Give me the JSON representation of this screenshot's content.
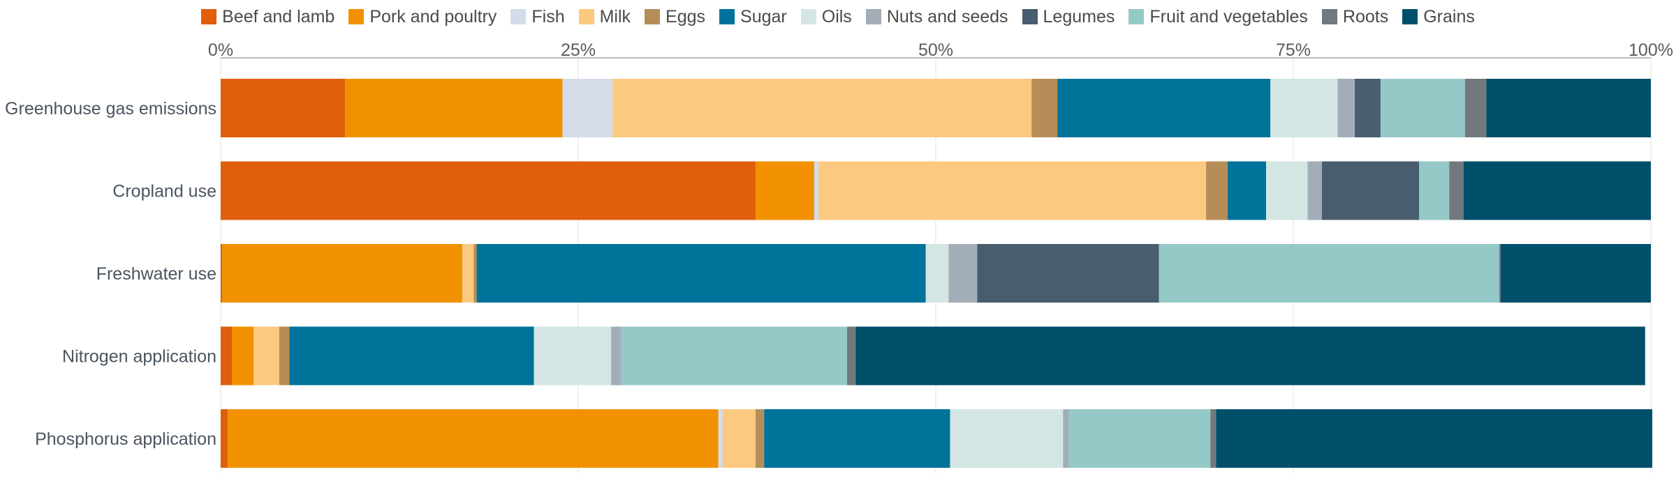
{
  "chart_data": {
    "type": "bar",
    "orientation": "horizontal",
    "stacked": true,
    "categories": [
      "Greenhouse gas emissions",
      "Cropland use",
      "Freshwater use",
      "Nitrogen application",
      "Phosphorus application"
    ],
    "xlim": [
      0,
      100
    ],
    "xticks": [
      "0%",
      "25%",
      "50%",
      "75%",
      "100%"
    ],
    "xaxis_position": "top",
    "grid": true,
    "legend_position": "top",
    "series": [
      {
        "name": "Beef and lamb",
        "color": "#e05e0c",
        "values": [
          8.7,
          37.4,
          0.1,
          0.8,
          0.5
        ]
      },
      {
        "name": "Pork and poultry",
        "color": "#f29100",
        "values": [
          15.2,
          4.1,
          16.8,
          1.5,
          34.3
        ]
      },
      {
        "name": "Fish",
        "color": "#d3dce8",
        "values": [
          3.5,
          0.3,
          0.0,
          0.0,
          0.3
        ]
      },
      {
        "name": "Milk",
        "color": "#fbc97f",
        "values": [
          29.3,
          27.1,
          0.8,
          1.8,
          2.3
        ]
      },
      {
        "name": "Eggs",
        "color": "#b68d56",
        "values": [
          1.8,
          1.5,
          0.2,
          0.7,
          0.6
        ]
      },
      {
        "name": "Sugar",
        "color": "#00739a",
        "values": [
          14.9,
          2.7,
          31.4,
          17.1,
          13.0
        ]
      },
      {
        "name": "Oils",
        "color": "#d3e6e4",
        "values": [
          4.7,
          2.9,
          1.6,
          5.4,
          7.9
        ]
      },
      {
        "name": "Nuts and seeds",
        "color": "#a3adb8",
        "values": [
          1.2,
          1.0,
          2.0,
          0.7,
          0.4
        ]
      },
      {
        "name": "Legumes",
        "color": "#485d6e",
        "values": [
          1.8,
          6.8,
          12.7,
          0.0,
          0.0
        ]
      },
      {
        "name": "Fruit and vegetables",
        "color": "#95c9c8",
        "values": [
          5.9,
          2.1,
          23.8,
          15.8,
          9.9
        ]
      },
      {
        "name": "Roots",
        "color": "#71797f",
        "values": [
          1.5,
          1.0,
          0.1,
          0.6,
          0.4
        ]
      },
      {
        "name": "Grains",
        "color": "#00506b",
        "values": [
          11.5,
          13.1,
          10.5,
          55.2,
          30.5
        ]
      }
    ]
  }
}
